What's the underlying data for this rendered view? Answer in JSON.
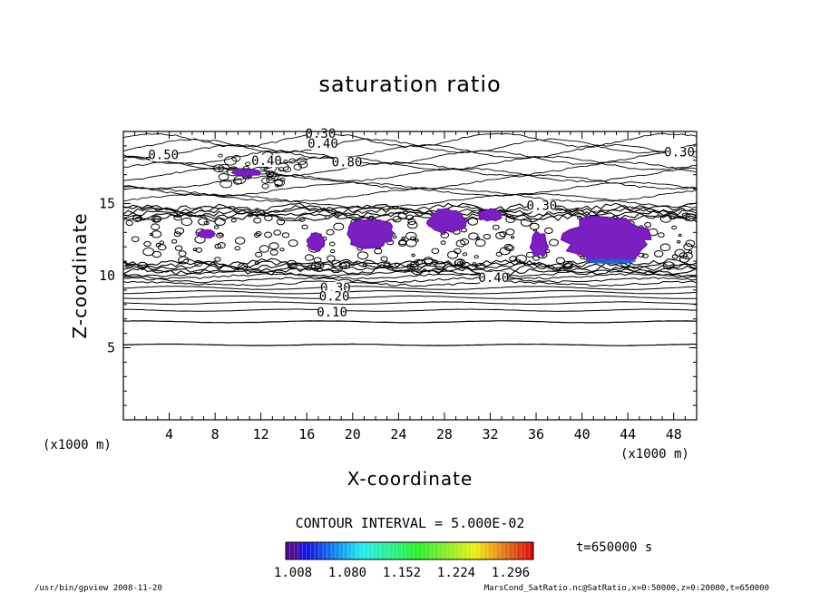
{
  "chart_data": {
    "type": "contour",
    "title": "saturation ratio",
    "xlabel": "X-coordinate",
    "ylabel": "Z-coordinate",
    "x_unit_label": "(x1000 m)",
    "y_unit_label": "(x1000 m)",
    "xlim": [
      0,
      50
    ],
    "ylim": [
      0,
      20
    ],
    "x_ticks": [
      "4",
      "8",
      "12",
      "16",
      "20",
      "24",
      "28",
      "32",
      "36",
      "40",
      "44",
      "48"
    ],
    "y_ticks": [
      "5",
      "10",
      "15"
    ],
    "contour_interval_text": "CONTOUR INTERVAL = 5.000E-02",
    "time_label": "t=650000 s",
    "colorbar_labels": [
      "1.008",
      "1.080",
      "1.152",
      "1.224",
      "1.296"
    ],
    "contour_labels": [
      "0.30",
      "0.40",
      "0.50",
      "0.30",
      "0.40",
      "0.80",
      "0.30",
      "0.40",
      "0.30",
      "0.20",
      "0.10"
    ],
    "supersaturated_regions": [
      {
        "x": [
          9.5,
          12.0
        ],
        "z": [
          16.9,
          17.4
        ]
      },
      {
        "x": [
          6.5,
          8.0
        ],
        "z": [
          12.6,
          13.2
        ]
      },
      {
        "x": [
          16.0,
          17.5
        ],
        "z": [
          11.7,
          13.0
        ]
      },
      {
        "x": [
          19.5,
          23.5
        ],
        "z": [
          11.8,
          14.0
        ]
      },
      {
        "x": [
          26.5,
          30.0
        ],
        "z": [
          13.0,
          14.6
        ]
      },
      {
        "x": [
          31.0,
          33.0
        ],
        "z": [
          13.8,
          14.6
        ]
      },
      {
        "x": [
          35.5,
          37.0
        ],
        "z": [
          11.3,
          13.0
        ]
      },
      {
        "x": [
          38.5,
          46.0
        ],
        "z": [
          10.8,
          14.2
        ]
      }
    ]
  },
  "footer": {
    "left": "/usr/bin/gpview   2008-11-20",
    "right": "MarsCond_SatRatio.nc@SatRatio,x=0:50000,z=0:20000,t=650000"
  },
  "colors": {
    "region": "#7a1fc0",
    "region_edge": "#6a12b0",
    "cool": "#2060d0",
    "line": "#000000"
  }
}
